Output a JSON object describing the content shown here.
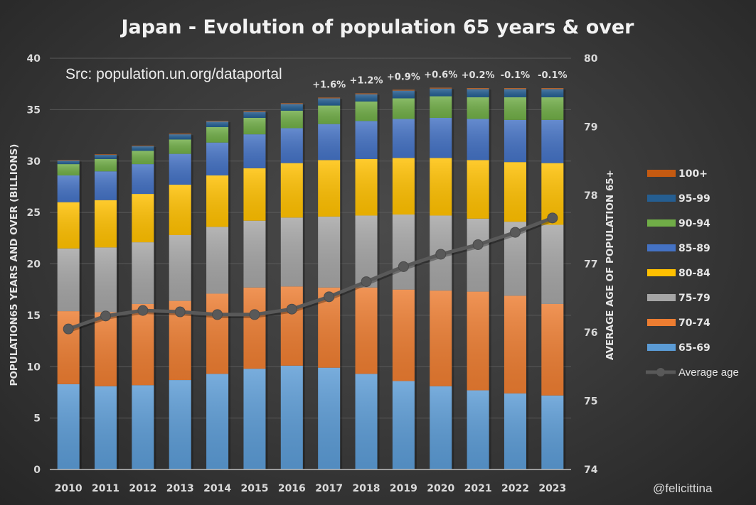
{
  "chart_data": {
    "type": "bar",
    "subtype": "stacked-bar-with-line",
    "title": "Japan - Evolution of population 65 years & over",
    "source_note": "Src: population.un.org/dataportal",
    "watermark": "@felicittina",
    "xlabel": "",
    "ylabel": "POPULATION65 YEARS AND OVER (BILLIONS)",
    "y2label": "AVERAGE AGE OF POPULATION 65+",
    "ylim": [
      0,
      40
    ],
    "y_ticks": [
      0,
      5,
      10,
      15,
      20,
      25,
      30,
      35,
      40
    ],
    "y2lim": [
      74,
      80
    ],
    "y2_ticks": [
      74,
      75,
      76,
      77,
      78,
      79,
      80
    ],
    "grid": true,
    "legend_position": "right",
    "categories": [
      "2010",
      "2011",
      "2012",
      "2013",
      "2014",
      "2015",
      "2016",
      "2017",
      "2018",
      "2019",
      "2020",
      "2021",
      "2022",
      "2023"
    ],
    "series": [
      {
        "name": "65-69",
        "color": "#5b9bd5",
        "values": [
          8.3,
          8.1,
          8.2,
          8.7,
          9.3,
          9.8,
          10.1,
          9.9,
          9.3,
          8.6,
          8.1,
          7.7,
          7.4,
          7.2
        ]
      },
      {
        "name": "70-74",
        "color": "#ed7d31",
        "values": [
          7.1,
          7.2,
          7.9,
          7.7,
          7.8,
          7.9,
          7.7,
          7.8,
          8.4,
          8.9,
          9.3,
          9.6,
          9.5,
          8.9
        ]
      },
      {
        "name": "75-79",
        "color": "#a5a5a5",
        "values": [
          6.1,
          6.3,
          6.0,
          6.4,
          6.5,
          6.5,
          6.7,
          6.9,
          7.0,
          7.3,
          7.3,
          7.1,
          7.2,
          7.7
        ]
      },
      {
        "name": "80-84",
        "color": "#ffc000",
        "values": [
          4.5,
          4.6,
          4.7,
          4.9,
          5.0,
          5.1,
          5.3,
          5.5,
          5.5,
          5.5,
          5.6,
          5.7,
          5.8,
          6.0
        ]
      },
      {
        "name": "85-89",
        "color": "#4472c4",
        "values": [
          2.6,
          2.8,
          2.9,
          3.0,
          3.2,
          3.3,
          3.4,
          3.5,
          3.7,
          3.8,
          3.9,
          4.0,
          4.1,
          4.2
        ]
      },
      {
        "name": "90-94",
        "color": "#70ad47",
        "values": [
          1.1,
          1.2,
          1.3,
          1.4,
          1.5,
          1.6,
          1.7,
          1.8,
          1.9,
          2.0,
          2.1,
          2.1,
          2.2,
          2.2
        ]
      },
      {
        "name": "95-99",
        "color": "#255e91",
        "values": [
          0.35,
          0.4,
          0.45,
          0.5,
          0.55,
          0.6,
          0.65,
          0.7,
          0.7,
          0.75,
          0.75,
          0.8,
          0.8,
          0.8
        ]
      },
      {
        "name": "100+",
        "color": "#c55a11",
        "values": [
          0.05,
          0.05,
          0.05,
          0.06,
          0.06,
          0.07,
          0.07,
          0.07,
          0.08,
          0.08,
          0.08,
          0.09,
          0.09,
          0.09
        ]
      }
    ],
    "line_series": {
      "name": "Average age",
      "axis": "right",
      "color": "#595959",
      "values": [
        76.05,
        76.24,
        76.32,
        76.3,
        76.26,
        76.26,
        76.34,
        76.52,
        76.74,
        76.96,
        77.14,
        77.28,
        77.46,
        77.67
      ]
    },
    "annotations": [
      {
        "category": "2017",
        "text": "+1.6%"
      },
      {
        "category": "2018",
        "text": "+1.2%"
      },
      {
        "category": "2019",
        "text": "+0.9%"
      },
      {
        "category": "2020",
        "text": "+0.6%"
      },
      {
        "category": "2021",
        "text": "+0.2%"
      },
      {
        "category": "2022",
        "text": "-0.1%"
      },
      {
        "category": "2023",
        "text": "-0.1%"
      }
    ],
    "legend": [
      "100+",
      "95-99",
      "90-94",
      "85-89",
      "80-84",
      "75-79",
      "70-74",
      "65-69",
      "Average age"
    ]
  }
}
